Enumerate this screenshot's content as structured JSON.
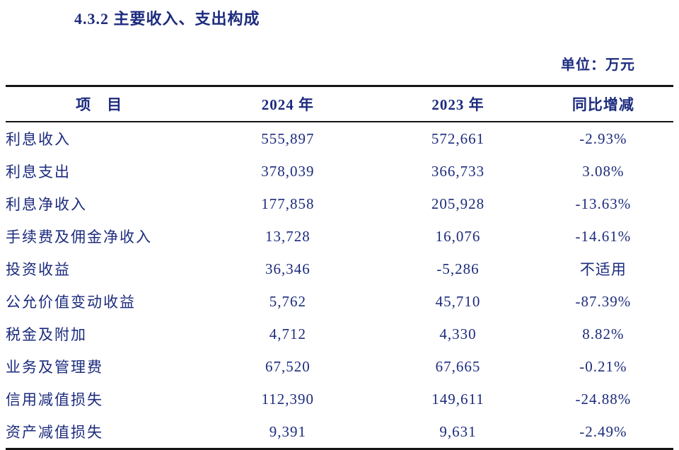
{
  "page": {
    "title": "4.3.2 主要收入、支出构成",
    "unit_label": "单位：万元"
  },
  "table": {
    "headers": [
      "项　目",
      "2024 年",
      "2023 年",
      "同比增减"
    ],
    "rows": [
      {
        "item": "利息收入",
        "y2024": "555,897",
        "y2023": "572,661",
        "change": "-2.93%"
      },
      {
        "item": "利息支出",
        "y2024": "378,039",
        "y2023": "366,733",
        "change": "3.08%"
      },
      {
        "item": "利息净收入",
        "y2024": "177,858",
        "y2023": "205,928",
        "change": "-13.63%"
      },
      {
        "item": "手续费及佣金净收入",
        "y2024": "13,728",
        "y2023": "16,076",
        "change": "-14.61%"
      },
      {
        "item": "投资收益",
        "y2024": "36,346",
        "y2023": "-5,286",
        "change": "不适用"
      },
      {
        "item": "公允价值变动收益",
        "y2024": "5,762",
        "y2023": "45,710",
        "change": "-87.39%"
      },
      {
        "item": "税金及附加",
        "y2024": "4,712",
        "y2023": "4,330",
        "change": "8.82%"
      },
      {
        "item": "业务及管理费",
        "y2024": "67,520",
        "y2023": "67,665",
        "change": "-0.21%"
      },
      {
        "item": "信用减值损失",
        "y2024": "112,390",
        "y2023": "149,611",
        "change": "-24.88%"
      },
      {
        "item": "资产减值损失",
        "y2024": "9,391",
        "y2023": "9,631",
        "change": "-2.49%"
      }
    ]
  }
}
